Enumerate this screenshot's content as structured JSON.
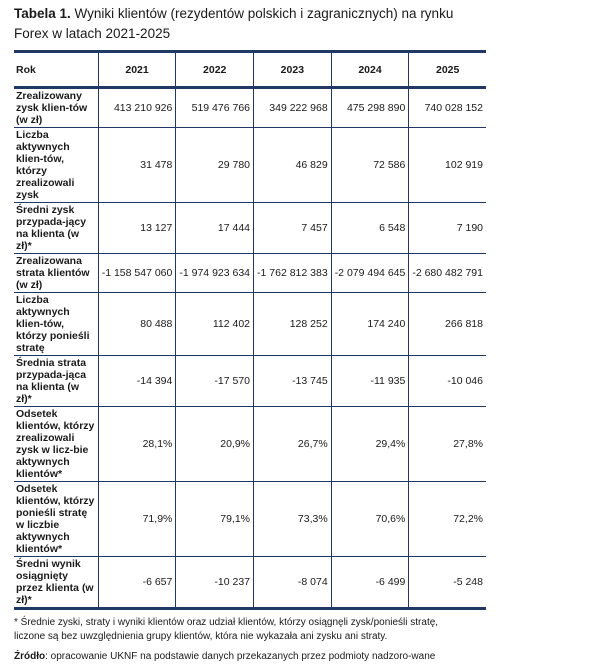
{
  "title": {
    "label": "Tabela 1.",
    "text": "Wyniki klientów (rezydentów polskich i zagranicznych) na rynku Forex w latach 2021-2025"
  },
  "table": {
    "header": [
      "Rok",
      "2021",
      "2022",
      "2023",
      "2024",
      "2025"
    ],
    "rows": [
      {
        "label": "Zrealizowany zysk klien-tów (w zł)",
        "values": [
          "413 210 926",
          "519 476 766",
          "349 222 968",
          "475 298 890",
          "740 028 152"
        ]
      },
      {
        "label": "Liczba aktywnych klien-tów, którzy zrealizowali zysk",
        "values": [
          "31 478",
          "29 780",
          "46 829",
          "72 586",
          "102 919"
        ]
      },
      {
        "label": "Średni zysk przypada-jący na klienta (w zł)*",
        "values": [
          "13 127",
          "17 444",
          "7 457",
          "6 548",
          "7 190"
        ]
      },
      {
        "label": "Zrealizowana strata klientów (w zł)",
        "values": [
          "-1 158 547 060",
          "-1 974 923 634",
          "-1 762 812 383",
          "-2 079 494 645",
          "-2 680 482 791"
        ]
      },
      {
        "label": "Liczba aktywnych klien-tów, którzy ponieśli stratę",
        "values": [
          "80 488",
          "112 402",
          "128 252",
          "174 240",
          "266 818"
        ]
      },
      {
        "label": "Średnia strata przypada-jąca na klienta (w zł)*",
        "values": [
          "-14 394",
          "-17 570",
          "-13 745",
          "-11 935",
          "-10 046"
        ]
      },
      {
        "label": "Odsetek klientów, którzy zrealizowali zysk w licz-bie aktywnych klientów*",
        "values": [
          "28,1%",
          "20,9%",
          "26,7%",
          "29,4%",
          "27,8%"
        ]
      },
      {
        "label": "Odsetek klientów, którzy ponieśli stratę w liczbie aktywnych klientów*",
        "values": [
          "71,9%",
          "79,1%",
          "73,3%",
          "70,6%",
          "72,2%"
        ]
      },
      {
        "label": "Średni wynik osiągnięty przez klienta (w zł)*",
        "values": [
          "-6 657",
          "-10 237",
          "-8 074",
          "-6 499",
          "-5 248"
        ]
      }
    ]
  },
  "footnote": "* Średnie zyski, straty i wyniki klientów oraz udział klientów, którzy osiągnęli zysk/ponieśli stratę, liczone są bez uwzględnienia grupy klientów, która nie wykazała ani zysku ani straty.",
  "source": {
    "label": "Źródło",
    "text": ": opracowanie UKNF na podstawie danych przekazanych przez podmioty nadzoro-wane"
  },
  "colors": {
    "rule": "#1f3864"
  }
}
